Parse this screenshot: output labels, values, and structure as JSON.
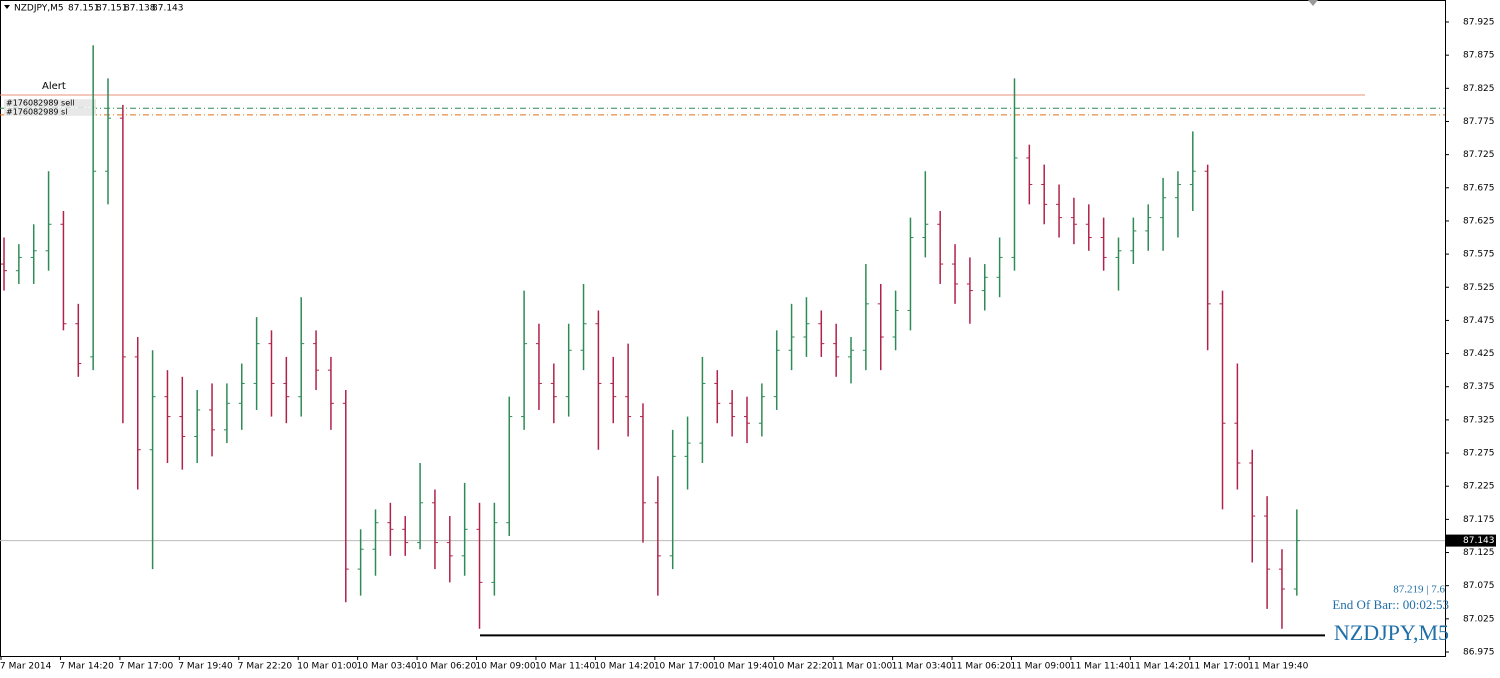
{
  "chart_data": {
    "type": "ohlc",
    "title": "NZDJPY,M5",
    "header_prices": [
      87.151,
      87.151,
      87.138,
      87.143
    ],
    "up_color": "#2e8b57",
    "down_color": "#b0224a",
    "ylim": [
      86.975,
      87.925
    ],
    "yticks": [
      87.925,
      87.875,
      87.825,
      87.775,
      87.725,
      87.675,
      87.625,
      87.575,
      87.525,
      87.475,
      87.425,
      87.375,
      87.325,
      87.275,
      87.225,
      87.175,
      87.125,
      87.075,
      87.025,
      86.975
    ],
    "categories": [
      "7 Mar 2014",
      null,
      null,
      null,
      "7 Mar 14:20",
      null,
      null,
      null,
      "7 Mar 17:00",
      null,
      null,
      null,
      "7 Mar 19:40",
      null,
      null,
      null,
      "7 Mar 22:20",
      null,
      null,
      null,
      "10 Mar 01:00",
      null,
      null,
      null,
      "10 Mar 03:40",
      null,
      null,
      null,
      "10 Mar 06:20",
      null,
      null,
      null,
      "10 Mar 09:00",
      null,
      null,
      null,
      "10 Mar 11:40",
      null,
      null,
      null,
      "10 Mar 14:20",
      null,
      null,
      null,
      "10 Mar 17:00",
      null,
      null,
      null,
      "10 Mar 19:40",
      null,
      null,
      null,
      "10 Mar 22:20",
      null,
      null,
      null,
      "11 Mar 01:00",
      null,
      null,
      null,
      "11 Mar 03:40",
      null,
      null,
      null,
      "11 Mar 06:20",
      null,
      null,
      null,
      "11 Mar 09:00",
      null,
      null,
      null,
      "11 Mar 11:40",
      null,
      null,
      null,
      "11 Mar 14:20",
      null,
      null,
      null,
      "11 Mar 17:00",
      null,
      null,
      null,
      "11 Mar 19:40",
      null,
      null,
      null
    ],
    "open": [
      87.56,
      87.55,
      87.57,
      87.58,
      87.62,
      87.47,
      87.42,
      87.7,
      87.78,
      87.42,
      87.28,
      87.36,
      87.33,
      87.3,
      87.34,
      87.31,
      87.35,
      87.38,
      87.44,
      87.38,
      87.36,
      87.44,
      87.4,
      87.35,
      87.1,
      87.13,
      87.17,
      87.16,
      87.14,
      87.2,
      87.14,
      87.12,
      87.16,
      87.08,
      87.17,
      87.33,
      87.44,
      87.38,
      87.36,
      87.43,
      87.47,
      87.38,
      87.36,
      87.33,
      87.2,
      87.12,
      87.27,
      87.29,
      87.38,
      87.35,
      87.33,
      87.32,
      87.36,
      87.43,
      87.45,
      87.47,
      87.44,
      87.42,
      87.43,
      87.5,
      87.45,
      87.49,
      87.6,
      87.62,
      87.56,
      87.53,
      87.52,
      87.54,
      87.57,
      87.72,
      87.68,
      87.65,
      87.63,
      87.62,
      87.6,
      87.57,
      87.58,
      87.61,
      87.63,
      87.66,
      87.68,
      87.7,
      87.5,
      87.32,
      87.26,
      87.18,
      87.1,
      87.07
    ],
    "high": [
      87.6,
      87.59,
      87.62,
      87.7,
      87.64,
      87.5,
      87.89,
      87.84,
      87.8,
      87.45,
      87.43,
      87.4,
      87.39,
      87.37,
      87.38,
      87.38,
      87.41,
      87.48,
      87.46,
      87.42,
      87.51,
      87.46,
      87.42,
      87.37,
      87.16,
      87.19,
      87.2,
      87.18,
      87.26,
      87.22,
      87.18,
      87.23,
      87.2,
      87.2,
      87.36,
      87.52,
      87.47,
      87.41,
      87.47,
      87.53,
      87.49,
      87.42,
      87.44,
      87.35,
      87.24,
      87.31,
      87.33,
      87.42,
      87.4,
      87.37,
      87.36,
      87.38,
      87.46,
      87.5,
      87.51,
      87.49,
      87.47,
      87.45,
      87.56,
      87.53,
      87.52,
      87.63,
      87.7,
      87.64,
      87.59,
      87.57,
      87.56,
      87.6,
      87.84,
      87.74,
      87.71,
      87.68,
      87.66,
      87.65,
      87.63,
      87.6,
      87.63,
      87.65,
      87.69,
      87.7,
      87.76,
      87.71,
      87.52,
      87.41,
      87.28,
      87.21,
      87.13,
      87.19
    ],
    "low": [
      87.52,
      87.53,
      87.53,
      87.55,
      87.46,
      87.39,
      87.4,
      87.65,
      87.32,
      87.22,
      87.1,
      87.26,
      87.25,
      87.26,
      87.27,
      87.29,
      87.31,
      87.34,
      87.33,
      87.32,
      87.33,
      87.37,
      87.31,
      87.05,
      87.06,
      87.09,
      87.12,
      87.12,
      87.13,
      87.1,
      87.08,
      87.09,
      87.01,
      87.06,
      87.15,
      87.31,
      87.34,
      87.32,
      87.33,
      87.4,
      87.28,
      87.32,
      87.3,
      87.14,
      87.06,
      87.1,
      87.22,
      87.26,
      87.32,
      87.3,
      87.29,
      87.3,
      87.34,
      87.4,
      87.42,
      87.42,
      87.39,
      87.38,
      87.4,
      87.4,
      87.43,
      87.46,
      87.57,
      87.53,
      87.5,
      87.47,
      87.49,
      87.51,
      87.55,
      87.65,
      87.62,
      87.6,
      87.59,
      87.58,
      87.55,
      87.52,
      87.56,
      87.58,
      87.58,
      87.6,
      87.64,
      87.43,
      87.19,
      87.22,
      87.11,
      87.04,
      87.01,
      87.06
    ],
    "close": [
      87.55,
      87.57,
      87.58,
      87.62,
      87.47,
      87.41,
      87.7,
      87.78,
      87.42,
      87.28,
      87.36,
      87.33,
      87.3,
      87.34,
      87.31,
      87.35,
      87.38,
      87.44,
      87.38,
      87.36,
      87.44,
      87.4,
      87.35,
      87.1,
      87.13,
      87.17,
      87.16,
      87.14,
      87.2,
      87.14,
      87.12,
      87.16,
      87.08,
      87.17,
      87.33,
      87.44,
      87.38,
      87.36,
      87.43,
      87.47,
      87.38,
      87.36,
      87.33,
      87.2,
      87.12,
      87.27,
      87.29,
      87.38,
      87.35,
      87.33,
      87.32,
      87.36,
      87.43,
      87.45,
      87.47,
      87.44,
      87.42,
      87.43,
      87.5,
      87.45,
      87.49,
      87.6,
      87.62,
      87.56,
      87.53,
      87.52,
      87.54,
      87.57,
      87.72,
      87.68,
      87.65,
      87.63,
      87.62,
      87.6,
      87.57,
      87.58,
      87.61,
      87.63,
      87.66,
      87.68,
      87.7,
      87.5,
      87.32,
      87.26,
      87.18,
      87.1,
      87.07,
      87.143
    ],
    "current_price": 87.143,
    "levels": [
      {
        "name": "Alert",
        "value": 87.815,
        "color": "#e8907a",
        "style": "solid"
      },
      {
        "name": "#176082989 sell",
        "value": 87.795,
        "color": "#2e8b57",
        "style": "dashdot"
      },
      {
        "name": "#176082989 sl",
        "value": 87.785,
        "color": "#e0701a",
        "style": "dashdot"
      }
    ],
    "support_level": 87.0,
    "info_line": "87.219 | 7.6",
    "end_of_bar": "End Of Bar:: 00:02:53",
    "symbol_label": "NZDJPY,M5"
  }
}
